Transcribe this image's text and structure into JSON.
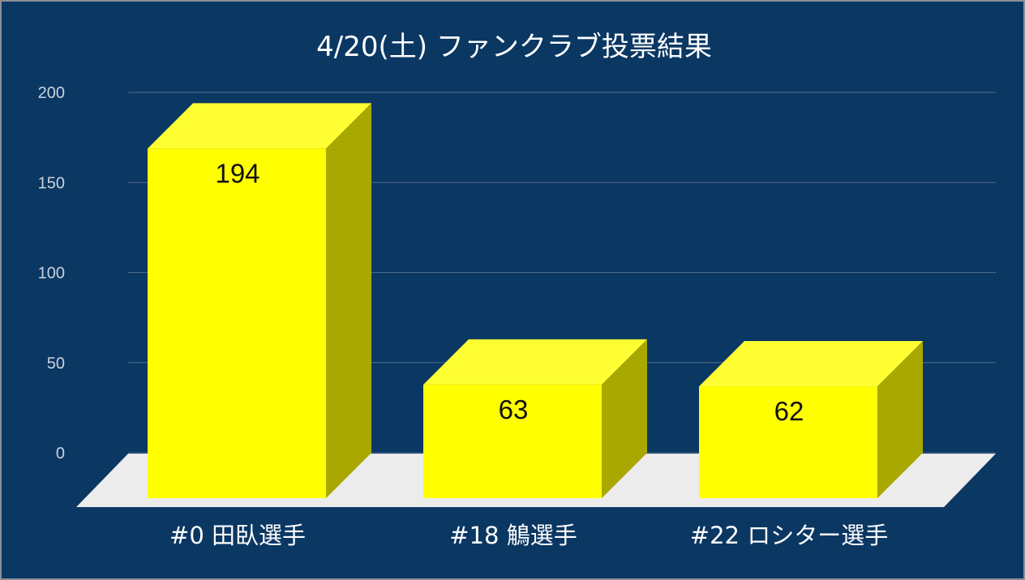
{
  "chart_data": {
    "type": "bar",
    "title": "4/20(土)  ファンクラブ投票結果",
    "categories": [
      "#0 田臥選手",
      "#18 鵤選手",
      "#22 ロシター選手"
    ],
    "values": [
      194,
      63,
      62
    ],
    "data_labels": [
      "194",
      "63",
      "62"
    ],
    "yticks": [
      "0",
      "50",
      "100",
      "150",
      "200"
    ],
    "ylim": [
      0,
      200
    ],
    "xlabel": "",
    "ylabel": "",
    "grid": true,
    "style": "3d",
    "colors": {
      "background": "#0b3763",
      "bar_front": "#ffff00",
      "bar_top": "#ffff33",
      "bar_side": "#a8a800",
      "floor": "#ececec"
    }
  }
}
